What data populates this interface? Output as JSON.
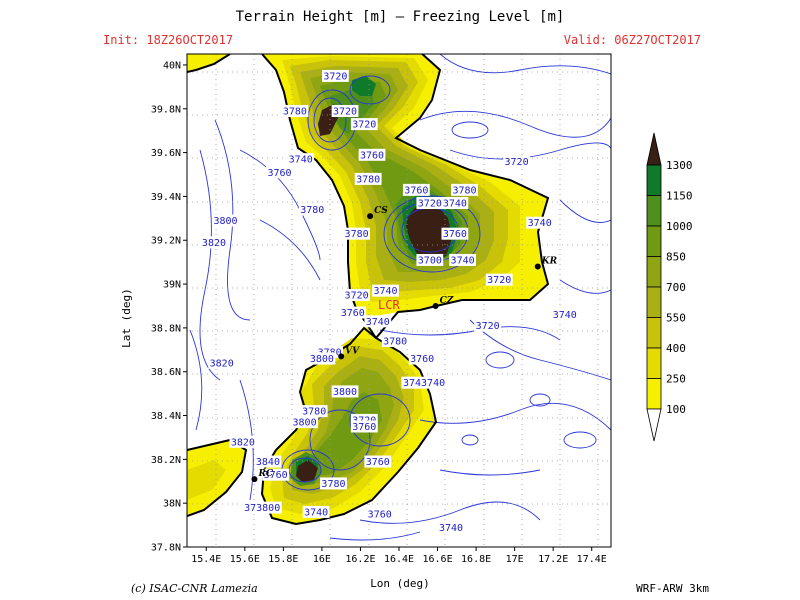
{
  "header": {
    "title": "Terrain Height [m] — Freezing Level [m]",
    "init": "Init: 18Z26OCT2017",
    "valid": "Valid: 06Z27OCT2017"
  },
  "footer": {
    "credit": "(c) ISAC-CNR Lamezia",
    "model": "WRF-ARW 3km"
  },
  "axes": {
    "xlabel": "Lon (deg)",
    "ylabel": "Lat (deg)",
    "lon_ticks": [
      "15.4E",
      "15.6E",
      "15.8E",
      "16E",
      "16.2E",
      "16.4E",
      "16.6E",
      "16.8E",
      "17E",
      "17.2E",
      "17.4E"
    ],
    "lon_values": [
      15.4,
      15.6,
      15.8,
      16.0,
      16.2,
      16.4,
      16.6,
      16.8,
      17.0,
      17.2,
      17.4
    ],
    "lat_ticks": [
      "40N",
      "39.8N",
      "39.6N",
      "39.4N",
      "39.2N",
      "39N",
      "38.8N",
      "38.6N",
      "38.4N",
      "38.2N",
      "38N",
      "37.8N"
    ],
    "lat_values": [
      40.0,
      39.8,
      39.6,
      39.4,
      39.2,
      39.0,
      38.8,
      38.6,
      38.4,
      38.2,
      38.0,
      37.8
    ],
    "lon_range": [
      15.3,
      17.5
    ],
    "lat_range": [
      37.8,
      40.05
    ]
  },
  "legend": {
    "levels": [
      "1300",
      "1150",
      "1000",
      "850",
      "700",
      "550",
      "400",
      "250",
      "100"
    ],
    "colors": [
      "#3a1f14",
      "#0f7a2a",
      "#4f8f1c",
      "#6f9a12",
      "#8fa512",
      "#aab014",
      "#c8c20a",
      "#e4dc00",
      "#f6f000"
    ]
  },
  "cities": [
    {
      "code": "CS",
      "lon": 16.25,
      "lat": 39.31
    },
    {
      "code": "KR",
      "lon": 17.12,
      "lat": 39.08
    },
    {
      "code": "CZ",
      "lon": 16.59,
      "lat": 38.9
    },
    {
      "code": "VV",
      "lon": 16.1,
      "lat": 38.67
    },
    {
      "code": "RC",
      "lon": 15.65,
      "lat": 38.11
    }
  ],
  "airport_label": "LCR",
  "contour_labels": [
    {
      "text": "3720",
      "lon": 16.07,
      "lat": 39.95
    },
    {
      "text": "3780",
      "lon": 15.86,
      "lat": 39.79
    },
    {
      "text": "3720",
      "lon": 16.12,
      "lat": 39.79
    },
    {
      "text": "3720",
      "lon": 16.22,
      "lat": 39.73
    },
    {
      "text": "3740",
      "lon": 15.89,
      "lat": 39.57
    },
    {
      "text": "3760",
      "lon": 16.26,
      "lat": 39.59
    },
    {
      "text": "3720",
      "lon": 17.01,
      "lat": 39.56
    },
    {
      "text": "3760",
      "lon": 15.78,
      "lat": 39.51
    },
    {
      "text": "3780",
      "lon": 16.24,
      "lat": 39.48
    },
    {
      "text": "3760",
      "lon": 16.49,
      "lat": 39.43
    },
    {
      "text": "3780",
      "lon": 16.74,
      "lat": 39.43
    },
    {
      "text": "3720",
      "lon": 16.56,
      "lat": 39.37
    },
    {
      "text": "3740",
      "lon": 16.69,
      "lat": 39.37
    },
    {
      "text": "3780",
      "lon": 15.95,
      "lat": 39.34
    },
    {
      "text": "3800",
      "lon": 15.5,
      "lat": 39.29
    },
    {
      "text": "3740",
      "lon": 17.13,
      "lat": 39.28
    },
    {
      "text": "3780",
      "lon": 16.18,
      "lat": 39.23
    },
    {
      "text": "3760",
      "lon": 16.69,
      "lat": 39.23
    },
    {
      "text": "3820",
      "lon": 15.44,
      "lat": 39.19
    },
    {
      "text": "3700",
      "lon": 16.56,
      "lat": 39.11
    },
    {
      "text": "3740",
      "lon": 16.73,
      "lat": 39.11
    },
    {
      "text": "3720",
      "lon": 16.92,
      "lat": 39.02
    },
    {
      "text": "3720",
      "lon": 16.18,
      "lat": 38.95
    },
    {
      "text": "3740",
      "lon": 16.33,
      "lat": 38.97
    },
    {
      "text": "3760",
      "lon": 16.16,
      "lat": 38.87
    },
    {
      "text": "3740",
      "lon": 16.29,
      "lat": 38.83
    },
    {
      "text": "3720",
      "lon": 16.86,
      "lat": 38.81
    },
    {
      "text": "3740",
      "lon": 17.26,
      "lat": 38.86
    },
    {
      "text": "3780",
      "lon": 16.38,
      "lat": 38.74
    },
    {
      "text": "3780",
      "lon": 16.04,
      "lat": 38.69
    },
    {
      "text": "3800",
      "lon": 16.0,
      "lat": 38.66
    },
    {
      "text": "3760",
      "lon": 16.52,
      "lat": 38.66
    },
    {
      "text": "3820",
      "lon": 15.48,
      "lat": 38.64
    },
    {
      "text": "3743740",
      "lon": 16.53,
      "lat": 38.55
    },
    {
      "text": "3800",
      "lon": 16.12,
      "lat": 38.51
    },
    {
      "text": "3780",
      "lon": 15.96,
      "lat": 38.42
    },
    {
      "text": "3720",
      "lon": 16.22,
      "lat": 38.38
    },
    {
      "text": "3800",
      "lon": 15.91,
      "lat": 38.37
    },
    {
      "text": "3760",
      "lon": 16.22,
      "lat": 38.35
    },
    {
      "text": "3820",
      "lon": 15.59,
      "lat": 38.28
    },
    {
      "text": "3840",
      "lon": 15.72,
      "lat": 38.19
    },
    {
      "text": "3760",
      "lon": 16.29,
      "lat": 38.19
    },
    {
      "text": "3760",
      "lon": 15.76,
      "lat": 38.13
    },
    {
      "text": "3780",
      "lon": 16.06,
      "lat": 38.09
    },
    {
      "text": "373800",
      "lon": 15.69,
      "lat": 37.98
    },
    {
      "text": "3740",
      "lon": 15.97,
      "lat": 37.96
    },
    {
      "text": "3760",
      "lon": 16.3,
      "lat": 37.95
    },
    {
      "text": "3740",
      "lon": 16.67,
      "lat": 37.89
    }
  ]
}
